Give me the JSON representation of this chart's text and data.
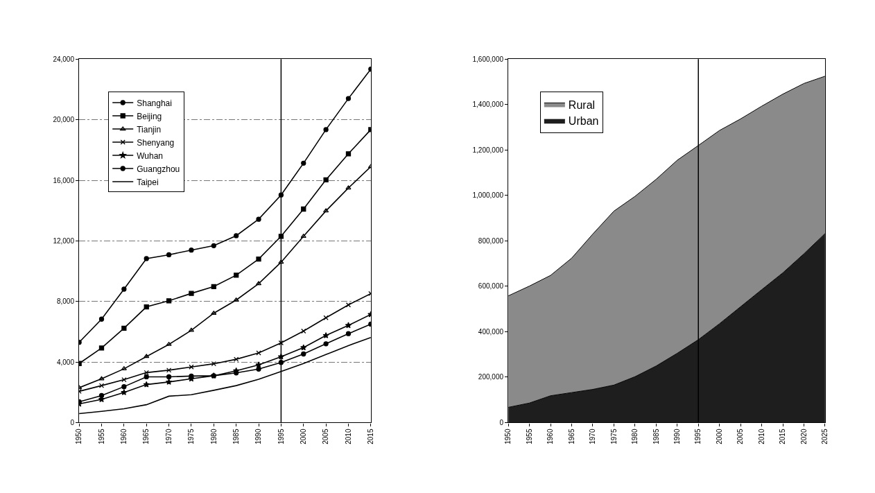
{
  "chart_data": [
    {
      "type": "line",
      "x": [
        1950,
        1955,
        1960,
        1965,
        1970,
        1975,
        1980,
        1985,
        1990,
        1995,
        2000,
        2005,
        2010,
        2015
      ],
      "series": [
        {
          "name": "Shanghai",
          "color": "#000000",
          "marker": "circle",
          "values": [
            5300,
            6830,
            8810,
            10830,
            11080,
            11390,
            11680,
            12340,
            13430,
            15030,
            17130,
            19350,
            21400,
            23340
          ]
        },
        {
          "name": "Beijing",
          "color": "#000000",
          "marker": "square",
          "values": [
            3900,
            4920,
            6230,
            7640,
            8040,
            8530,
            8980,
            9730,
            10800,
            12300,
            14100,
            16030,
            17750,
            19350
          ]
        },
        {
          "name": "Tianjin",
          "color": "#000000",
          "marker": "triangle",
          "values": [
            2300,
            2890,
            3550,
            4360,
            5160,
            6090,
            7220,
            8090,
            9170,
            10590,
            12300,
            13980,
            15490,
            16900
          ]
        },
        {
          "name": "Shenyang",
          "color": "#000000",
          "marker": "cross",
          "values": [
            2060,
            2440,
            2830,
            3300,
            3460,
            3670,
            3880,
            4180,
            4600,
            5260,
            6040,
            6920,
            7770,
            8520
          ]
        },
        {
          "name": "Wuhan",
          "color": "#000000",
          "marker": "star",
          "values": [
            1230,
            1530,
            1990,
            2510,
            2680,
            2890,
            3090,
            3420,
            3810,
            4350,
            4950,
            5750,
            6420,
            7140
          ]
        },
        {
          "name": "Guangzhou",
          "color": "#000000",
          "marker": "circle",
          "values": [
            1370,
            1780,
            2370,
            3020,
            3020,
            3070,
            3090,
            3280,
            3530,
            3970,
            4530,
            5200,
            5870,
            6500
          ]
        },
        {
          "name": "Taipei",
          "color": "#000000",
          "marker": "none",
          "values": [
            590,
            740,
            910,
            1180,
            1740,
            1840,
            2130,
            2440,
            2860,
            3370,
            3900,
            4490,
            5080,
            5620
          ]
        }
      ],
      "xlim": [
        1950,
        2015
      ],
      "xticks": [
        1950,
        1955,
        1960,
        1965,
        1970,
        1975,
        1980,
        1985,
        1990,
        1995,
        2000,
        2005,
        2010,
        2015
      ],
      "ylim": [
        0,
        24000
      ],
      "yticks": [
        0,
        {
          "value": 4000,
          "label": "4,000"
        },
        {
          "value": 8000,
          "label": "8,000"
        },
        {
          "value": 12000,
          "label": "12,000"
        },
        {
          "value": 16000,
          "label": "16,000"
        },
        {
          "value": 20000,
          "label": "20,000"
        },
        {
          "value": 24000,
          "label": "24,000"
        }
      ],
      "grid": "y",
      "legend": "top left",
      "line_style": "solid",
      "ref_lines": [
        {
          "axis": "x",
          "value": 1995,
          "color": "#000000"
        }
      ]
    },
    {
      "type": "area",
      "stacked": true,
      "x": [
        1950,
        1955,
        1960,
        1965,
        1970,
        1975,
        1980,
        1985,
        1990,
        1995,
        2000,
        2005,
        2010,
        2015,
        2020,
        2025
      ],
      "series": [
        {
          "name": "Urban",
          "color": "#1e1e1e",
          "values": [
            67000,
            86000,
            118000,
            132000,
            146000,
            165000,
            202000,
            249000,
            305000,
            365000,
            435000,
            510000,
            585000,
            659000,
            743000,
            832000
          ]
        },
        {
          "name": "Rural",
          "color": "#8a8a8a",
          "values": [
            491000,
            515000,
            530000,
            592000,
            684000,
            766000,
            794000,
            822000,
            850000,
            855000,
            851000,
            827000,
            808000,
            787000,
            750000,
            693000
          ]
        }
      ],
      "xlim": [
        1950,
        2025
      ],
      "xticks": [
        1950,
        1955,
        1960,
        1965,
        1970,
        1975,
        1980,
        1985,
        1990,
        1995,
        2000,
        2005,
        2010,
        2015,
        2020,
        2025
      ],
      "ylim": [
        0,
        1600000
      ],
      "yticks": [
        0,
        {
          "value": 200000,
          "label": "200,000"
        },
        {
          "value": 400000,
          "label": "400,000"
        },
        {
          "value": 600000,
          "label": "600,000"
        },
        {
          "value": 800000,
          "label": "800,000"
        },
        {
          "value": 1000000,
          "label": "1,000,000"
        },
        {
          "value": 1200000,
          "label": "1,200,000"
        },
        {
          "value": 1400000,
          "label": "1,400,000"
        },
        {
          "value": 1600000,
          "label": "1,600,000"
        }
      ],
      "grid": false,
      "legend": "top left",
      "ref_lines": [
        {
          "axis": "x",
          "value": 1995,
          "color": "#000000"
        }
      ]
    }
  ]
}
